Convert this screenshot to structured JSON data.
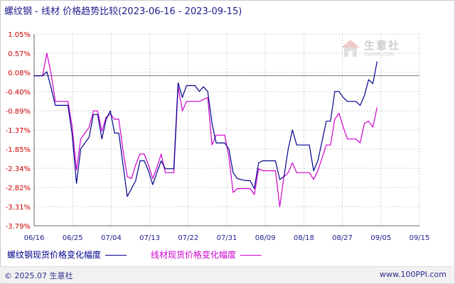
{
  "header": {
    "title": "螺纹钢 - 线材 价格趋势比较",
    "date_range": "(2023-06-16 - 2023-09-15)"
  },
  "watermark": {
    "brand": "生意社",
    "url": "100PPI.COM"
  },
  "footer": {
    "copyright": "© 2025.07 生意社",
    "site": "www.100PPI.com"
  },
  "chart_data": {
    "type": "line",
    "title": "螺纹钢 - 线材 价格趋势比较(2023-06-16 - 2023-09-15)",
    "x_ticks": [
      "06/16",
      "06/25",
      "07/04",
      "07/13",
      "07/22",
      "07/31",
      "08/09",
      "08/18",
      "08/27",
      "09/05",
      "09/15"
    ],
    "y_ticks": [
      "1.05%",
      "0.57%",
      "0.08%",
      "-0.40%",
      "-0.89%",
      "-1.37%",
      "-1.85%",
      "-2.34%",
      "-2.82%",
      "-3.31%",
      "-3.79%"
    ],
    "ylim": [
      -3.79,
      1.05
    ],
    "grid": true,
    "legend_position": "bottom",
    "x_start": "2023-06-16",
    "x_end": "2023-09-15",
    "series": [
      {
        "name": "螺纹钢现货价格变化幅度",
        "color": "#00008b",
        "points": [
          [
            "2023-06-16",
            0.0
          ],
          [
            "2023-06-18",
            0.0
          ],
          [
            "2023-06-19",
            0.1
          ],
          [
            "2023-06-20",
            -0.3
          ],
          [
            "2023-06-21",
            -0.75
          ],
          [
            "2023-06-24",
            -0.75
          ],
          [
            "2023-06-25",
            -1.5
          ],
          [
            "2023-06-26",
            -2.72
          ],
          [
            "2023-06-27",
            -1.85
          ],
          [
            "2023-06-29",
            -1.55
          ],
          [
            "2023-06-30",
            -0.98
          ],
          [
            "2023-07-01",
            -0.98
          ],
          [
            "2023-07-02",
            -1.6
          ],
          [
            "2023-07-03",
            -1.1
          ],
          [
            "2023-07-04",
            -0.89
          ],
          [
            "2023-07-05",
            -1.45
          ],
          [
            "2023-07-06",
            -1.45
          ],
          [
            "2023-07-07",
            -2.25
          ],
          [
            "2023-07-08",
            -3.05
          ],
          [
            "2023-07-09",
            -2.85
          ],
          [
            "2023-07-10",
            -2.65
          ],
          [
            "2023-07-11",
            -2.15
          ],
          [
            "2023-07-12",
            -2.15
          ],
          [
            "2023-07-13",
            -2.4
          ],
          [
            "2023-07-14",
            -2.75
          ],
          [
            "2023-07-15",
            -2.45
          ],
          [
            "2023-07-16",
            -2.15
          ],
          [
            "2023-07-17",
            -2.35
          ],
          [
            "2023-07-19",
            -2.35
          ],
          [
            "2023-07-20",
            -0.18
          ],
          [
            "2023-07-21",
            -0.55
          ],
          [
            "2023-07-22",
            -0.25
          ],
          [
            "2023-07-24",
            -0.25
          ],
          [
            "2023-07-25",
            -0.4
          ],
          [
            "2023-07-26",
            -0.28
          ],
          [
            "2023-07-27",
            -0.4
          ],
          [
            "2023-07-28",
            -1.2
          ],
          [
            "2023-07-29",
            -1.7
          ],
          [
            "2023-07-31",
            -1.7
          ],
          [
            "2023-08-01",
            -1.85
          ],
          [
            "2023-08-02",
            -2.45
          ],
          [
            "2023-08-03",
            -2.6
          ],
          [
            "2023-08-05",
            -2.65
          ],
          [
            "2023-08-06",
            -2.65
          ],
          [
            "2023-08-07",
            -2.85
          ],
          [
            "2023-08-08",
            -2.2
          ],
          [
            "2023-08-09",
            -2.15
          ],
          [
            "2023-08-12",
            -2.15
          ],
          [
            "2023-08-13",
            -2.62
          ],
          [
            "2023-08-14",
            -2.55
          ],
          [
            "2023-08-15",
            -1.85
          ],
          [
            "2023-08-16",
            -1.37
          ],
          [
            "2023-08-17",
            -1.75
          ],
          [
            "2023-08-20",
            -1.75
          ],
          [
            "2023-08-21",
            -2.4
          ],
          [
            "2023-08-22",
            -2.15
          ],
          [
            "2023-08-24",
            -1.15
          ],
          [
            "2023-08-25",
            -1.15
          ],
          [
            "2023-08-26",
            -0.4
          ],
          [
            "2023-08-27",
            -0.4
          ],
          [
            "2023-08-28",
            -0.55
          ],
          [
            "2023-08-29",
            -0.65
          ],
          [
            "2023-08-31",
            -0.65
          ],
          [
            "2023-09-01",
            -0.75
          ],
          [
            "2023-09-02",
            -0.5
          ],
          [
            "2023-09-03",
            -0.1
          ],
          [
            "2023-09-04",
            -0.2
          ],
          [
            "2023-09-05",
            0.36
          ]
        ]
      },
      {
        "name": "线材现货价格变化幅度",
        "color": "#cc00cc",
        "points": [
          [
            "2023-06-16",
            0.0
          ],
          [
            "2023-06-18",
            0.0
          ],
          [
            "2023-06-19",
            0.57
          ],
          [
            "2023-06-20",
            0.05
          ],
          [
            "2023-06-21",
            -0.65
          ],
          [
            "2023-06-24",
            -0.65
          ],
          [
            "2023-06-25",
            -1.3
          ],
          [
            "2023-06-26",
            -2.38
          ],
          [
            "2023-06-27",
            -1.6
          ],
          [
            "2023-06-29",
            -1.3
          ],
          [
            "2023-06-30",
            -0.89
          ],
          [
            "2023-07-01",
            -0.89
          ],
          [
            "2023-07-02",
            -1.4
          ],
          [
            "2023-07-03",
            -1.05
          ],
          [
            "2023-07-04",
            -0.97
          ],
          [
            "2023-07-05",
            -1.1
          ],
          [
            "2023-07-06",
            -1.1
          ],
          [
            "2023-07-07",
            -1.9
          ],
          [
            "2023-07-08",
            -2.55
          ],
          [
            "2023-07-09",
            -2.6
          ],
          [
            "2023-07-10",
            -2.25
          ],
          [
            "2023-07-11",
            -1.98
          ],
          [
            "2023-07-12",
            -1.98
          ],
          [
            "2023-07-13",
            -2.25
          ],
          [
            "2023-07-14",
            -2.6
          ],
          [
            "2023-07-15",
            -2.32
          ],
          [
            "2023-07-16",
            -1.98
          ],
          [
            "2023-07-17",
            -2.45
          ],
          [
            "2023-07-19",
            -2.45
          ],
          [
            "2023-07-20",
            -0.28
          ],
          [
            "2023-07-21",
            -0.89
          ],
          [
            "2023-07-22",
            -0.65
          ],
          [
            "2023-07-24",
            -0.65
          ],
          [
            "2023-07-25",
            -0.65
          ],
          [
            "2023-07-26",
            -0.6
          ],
          [
            "2023-07-27",
            -0.55
          ],
          [
            "2023-07-28",
            -1.75
          ],
          [
            "2023-07-29",
            -1.5
          ],
          [
            "2023-07-31",
            -1.5
          ],
          [
            "2023-08-01",
            -2.05
          ],
          [
            "2023-08-02",
            -2.95
          ],
          [
            "2023-08-03",
            -2.85
          ],
          [
            "2023-08-05",
            -2.85
          ],
          [
            "2023-08-06",
            -2.85
          ],
          [
            "2023-08-07",
            -3.0
          ],
          [
            "2023-08-08",
            -2.35
          ],
          [
            "2023-08-09",
            -2.4
          ],
          [
            "2023-08-12",
            -2.4
          ],
          [
            "2023-08-13",
            -3.31
          ],
          [
            "2023-08-14",
            -2.55
          ],
          [
            "2023-08-15",
            -2.45
          ],
          [
            "2023-08-16",
            -2.2
          ],
          [
            "2023-08-17",
            -2.45
          ],
          [
            "2023-08-20",
            -2.45
          ],
          [
            "2023-08-21",
            -2.62
          ],
          [
            "2023-08-22",
            -2.4
          ],
          [
            "2023-08-24",
            -1.75
          ],
          [
            "2023-08-25",
            -1.75
          ],
          [
            "2023-08-26",
            -1.1
          ],
          [
            "2023-08-27",
            -0.95
          ],
          [
            "2023-08-28",
            -1.3
          ],
          [
            "2023-08-29",
            -1.6
          ],
          [
            "2023-08-31",
            -1.6
          ],
          [
            "2023-09-01",
            -1.7
          ],
          [
            "2023-09-02",
            -1.2
          ],
          [
            "2023-09-03",
            -1.15
          ],
          [
            "2023-09-04",
            -1.3
          ],
          [
            "2023-09-05",
            -0.8
          ]
        ]
      }
    ]
  }
}
